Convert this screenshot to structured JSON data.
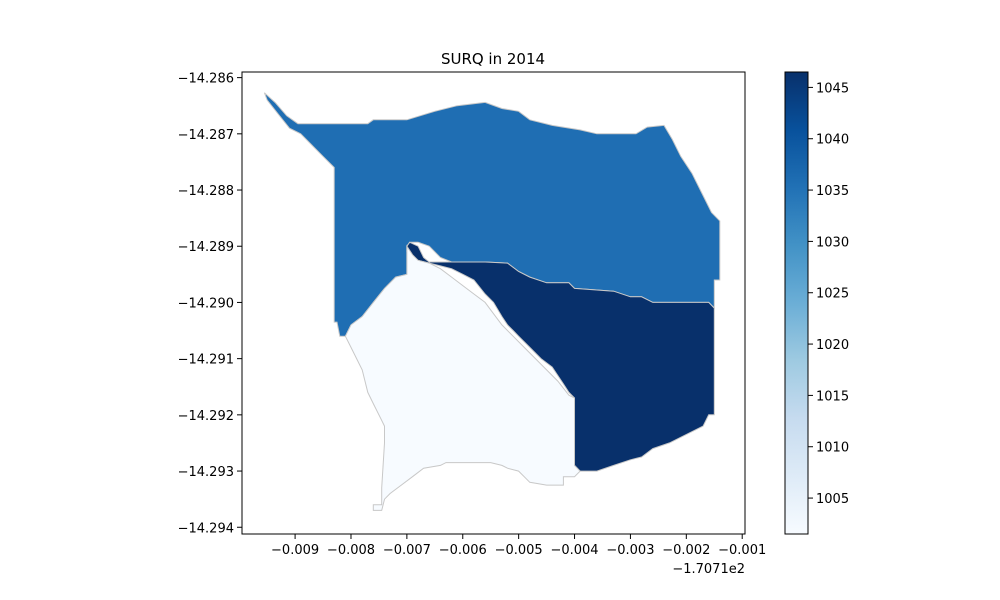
{
  "chart_data": {
    "type": "choropleth",
    "title": "SURQ in 2014",
    "xlabel": "",
    "ylabel": "",
    "x_offset_label": "−1.7071e2",
    "xlim": [
      -0.00995,
      -0.00095
    ],
    "ylim": [
      -14.29412,
      -14.2859
    ],
    "x_ticks": [
      -0.009,
      -0.008,
      -0.007,
      -0.006,
      -0.005,
      -0.004,
      -0.003,
      -0.002,
      -0.001
    ],
    "x_tick_labels": [
      "−0.009",
      "−0.008",
      "−0.007",
      "−0.006",
      "−0.005",
      "−0.004",
      "−0.003",
      "−0.002",
      "−0.001"
    ],
    "y_ticks": [
      -14.286,
      -14.287,
      -14.288,
      -14.289,
      -14.29,
      -14.291,
      -14.292,
      -14.293,
      -14.294
    ],
    "y_tick_labels": [
      "−14.286",
      "−14.287",
      "−14.288",
      "−14.289",
      "−14.290",
      "−14.291",
      "−14.292",
      "−14.293",
      "−14.294"
    ],
    "grid": false,
    "colormap": "Blues",
    "colorbar": {
      "vmin": 1001.5,
      "vmax": 1046.5,
      "ticks": [
        1005,
        1010,
        1015,
        1020,
        1025,
        1030,
        1035,
        1040,
        1045
      ],
      "tick_labels": [
        "1005",
        "1010",
        "1015",
        "1020",
        "1025",
        "1030",
        "1035",
        "1040",
        "1045"
      ]
    },
    "regions": [
      {
        "id": "north",
        "value": 1035,
        "color": "#1f6eb3",
        "polygon": [
          [
            -0.00955,
            -14.28627
          ],
          [
            -0.00935,
            -14.28645
          ],
          [
            -0.00915,
            -14.28668
          ],
          [
            -0.00895,
            -14.28682
          ],
          [
            -0.0083,
            -14.28682
          ],
          [
            -0.0077,
            -14.28682
          ],
          [
            -0.0076,
            -14.28675
          ],
          [
            -0.007,
            -14.28675
          ],
          [
            -0.0065,
            -14.2866
          ],
          [
            -0.0061,
            -14.2865
          ],
          [
            -0.0056,
            -14.28644
          ],
          [
            -0.0053,
            -14.28655
          ],
          [
            -0.005,
            -14.2866
          ],
          [
            -0.0048,
            -14.28675
          ],
          [
            -0.0044,
            -14.28685
          ],
          [
            -0.0039,
            -14.28693
          ],
          [
            -0.0036,
            -14.287
          ],
          [
            -0.0029,
            -14.287
          ],
          [
            -0.0027,
            -14.28688
          ],
          [
            -0.0024,
            -14.28685
          ],
          [
            -0.00225,
            -14.2871
          ],
          [
            -0.0021,
            -14.2874
          ],
          [
            -0.0019,
            -14.2877
          ],
          [
            -0.0017,
            -14.2881
          ],
          [
            -0.00155,
            -14.2884
          ],
          [
            -0.0014,
            -14.28855
          ],
          [
            -0.0014,
            -14.2896
          ],
          [
            -0.0015,
            -14.2896
          ],
          [
            -0.0015,
            -14.2901
          ],
          [
            -0.0016,
            -14.29
          ],
          [
            -0.0017,
            -14.29
          ],
          [
            -0.0026,
            -14.29
          ],
          [
            -0.0028,
            -14.2899
          ],
          [
            -0.003,
            -14.2899
          ],
          [
            -0.0033,
            -14.2898
          ],
          [
            -0.004,
            -14.28975
          ],
          [
            -0.0041,
            -14.28965
          ],
          [
            -0.0045,
            -14.28965
          ],
          [
            -0.0048,
            -14.28955
          ],
          [
            -0.005,
            -14.28945
          ],
          [
            -0.0052,
            -14.2893
          ],
          [
            -0.0056,
            -14.28928
          ],
          [
            -0.0059,
            -14.28928
          ],
          [
            -0.0062,
            -14.28928
          ],
          [
            -0.0064,
            -14.2892
          ],
          [
            -0.0066,
            -14.289
          ],
          [
            -0.0068,
            -14.28893
          ],
          [
            -0.00695,
            -14.28893
          ],
          [
            -0.007,
            -14.289
          ],
          [
            -0.007,
            -14.2895
          ],
          [
            -0.0072,
            -14.28955
          ],
          [
            -0.0074,
            -14.28975
          ],
          [
            -0.0076,
            -14.29
          ],
          [
            -0.0078,
            -14.29025
          ],
          [
            -0.008,
            -14.2904
          ],
          [
            -0.0081,
            -14.2906
          ],
          [
            -0.0082,
            -14.2906
          ],
          [
            -0.00825,
            -14.29035
          ],
          [
            -0.0083,
            -14.29035
          ],
          [
            -0.0083,
            -14.289
          ],
          [
            -0.0083,
            -14.2876
          ],
          [
            -0.0085,
            -14.2874
          ],
          [
            -0.0087,
            -14.2872
          ],
          [
            -0.0089,
            -14.287
          ],
          [
            -0.0091,
            -14.2869
          ],
          [
            -0.0093,
            -14.28665
          ],
          [
            -0.0095,
            -14.2864
          ]
        ]
      },
      {
        "id": "southeast",
        "value": 1046,
        "color": "#08306b",
        "polygon": [
          [
            -0.00695,
            -14.28893
          ],
          [
            -0.0068,
            -14.289
          ],
          [
            -0.0067,
            -14.2892
          ],
          [
            -0.0066,
            -14.28928
          ],
          [
            -0.0062,
            -14.28928
          ],
          [
            -0.0059,
            -14.28928
          ],
          [
            -0.0056,
            -14.28928
          ],
          [
            -0.0052,
            -14.2893
          ],
          [
            -0.005,
            -14.28945
          ],
          [
            -0.0048,
            -14.28955
          ],
          [
            -0.0045,
            -14.28965
          ],
          [
            -0.0041,
            -14.28965
          ],
          [
            -0.004,
            -14.28975
          ],
          [
            -0.0033,
            -14.2898
          ],
          [
            -0.003,
            -14.2899
          ],
          [
            -0.0028,
            -14.2899
          ],
          [
            -0.0026,
            -14.29
          ],
          [
            -0.0017,
            -14.29
          ],
          [
            -0.0016,
            -14.29
          ],
          [
            -0.0015,
            -14.2901
          ],
          [
            -0.0015,
            -14.292
          ],
          [
            -0.0016,
            -14.292
          ],
          [
            -0.0017,
            -14.2922
          ],
          [
            -0.0019,
            -14.2923
          ],
          [
            -0.0021,
            -14.2924
          ],
          [
            -0.0023,
            -14.2925
          ],
          [
            -0.0026,
            -14.2926
          ],
          [
            -0.0028,
            -14.29275
          ],
          [
            -0.003,
            -14.2928
          ],
          [
            -0.0033,
            -14.2929
          ],
          [
            -0.0036,
            -14.293
          ],
          [
            -0.0039,
            -14.293
          ],
          [
            -0.004,
            -14.2929
          ],
          [
            -0.004,
            -14.2917
          ],
          [
            -0.0041,
            -14.2916
          ],
          [
            -0.0042,
            -14.29145
          ],
          [
            -0.0043,
            -14.2913
          ],
          [
            -0.0044,
            -14.29115
          ],
          [
            -0.0046,
            -14.291
          ],
          [
            -0.0048,
            -14.2908
          ],
          [
            -0.005,
            -14.2906
          ],
          [
            -0.0051,
            -14.2905
          ],
          [
            -0.0052,
            -14.2904
          ],
          [
            -0.0053,
            -14.29025
          ],
          [
            -0.00545,
            -14.29
          ],
          [
            -0.0056,
            -14.28985
          ],
          [
            -0.0058,
            -14.2896
          ],
          [
            -0.006,
            -14.2895
          ],
          [
            -0.0062,
            -14.2894
          ],
          [
            -0.0064,
            -14.28935
          ],
          [
            -0.0066,
            -14.2893
          ],
          [
            -0.0068,
            -14.28925
          ],
          [
            -0.007,
            -14.2891
          ],
          [
            -0.007,
            -14.289
          ]
        ]
      },
      {
        "id": "southwest",
        "value": 1002,
        "color": "#f7fbff",
        "polygon": [
          [
            -0.007,
            -14.289
          ],
          [
            -0.0069,
            -14.28915
          ],
          [
            -0.0068,
            -14.28925
          ],
          [
            -0.0066,
            -14.2893
          ],
          [
            -0.0064,
            -14.2894
          ],
          [
            -0.0062,
            -14.28955
          ],
          [
            -0.006,
            -14.2897
          ],
          [
            -0.0058,
            -14.28985
          ],
          [
            -0.0056,
            -14.29
          ],
          [
            -0.00545,
            -14.2902
          ],
          [
            -0.0053,
            -14.2904
          ],
          [
            -0.0051,
            -14.2906
          ],
          [
            -0.0049,
            -14.2908
          ],
          [
            -0.0047,
            -14.291
          ],
          [
            -0.0045,
            -14.2912
          ],
          [
            -0.0043,
            -14.2914
          ],
          [
            -0.0041,
            -14.29165
          ],
          [
            -0.004,
            -14.2917
          ],
          [
            -0.004,
            -14.2929
          ],
          [
            -0.0039,
            -14.293
          ],
          [
            -0.004,
            -14.2931
          ],
          [
            -0.0042,
            -14.2931
          ],
          [
            -0.0042,
            -14.29325
          ],
          [
            -0.0045,
            -14.29325
          ],
          [
            -0.0048,
            -14.2932
          ],
          [
            -0.0049,
            -14.2931
          ],
          [
            -0.005,
            -14.293
          ],
          [
            -0.0052,
            -14.29295
          ],
          [
            -0.0053,
            -14.2929
          ],
          [
            -0.0055,
            -14.29285
          ],
          [
            -0.0058,
            -14.29285
          ],
          [
            -0.0061,
            -14.29285
          ],
          [
            -0.0063,
            -14.29285
          ],
          [
            -0.0064,
            -14.2929
          ],
          [
            -0.0067,
            -14.29295
          ],
          [
            -0.0069,
            -14.2931
          ],
          [
            -0.0071,
            -14.29325
          ],
          [
            -0.0073,
            -14.2934
          ],
          [
            -0.0074,
            -14.2935
          ],
          [
            -0.00745,
            -14.2937
          ],
          [
            -0.0076,
            -14.2937
          ],
          [
            -0.0076,
            -14.2936
          ],
          [
            -0.00745,
            -14.2936
          ],
          [
            -0.00745,
            -14.2933
          ],
          [
            -0.0074,
            -14.2925
          ],
          [
            -0.0074,
            -14.2922
          ],
          [
            -0.0075,
            -14.292
          ],
          [
            -0.0076,
            -14.2918
          ],
          [
            -0.0077,
            -14.2916
          ],
          [
            -0.0078,
            -14.2912
          ],
          [
            -0.0079,
            -14.291
          ],
          [
            -0.008,
            -14.2908
          ],
          [
            -0.0081,
            -14.2906
          ],
          [
            -0.008,
            -14.2904
          ],
          [
            -0.0078,
            -14.29025
          ],
          [
            -0.0076,
            -14.29
          ],
          [
            -0.0074,
            -14.28975
          ],
          [
            -0.0072,
            -14.28955
          ],
          [
            -0.007,
            -14.2895
          ]
        ]
      }
    ]
  }
}
